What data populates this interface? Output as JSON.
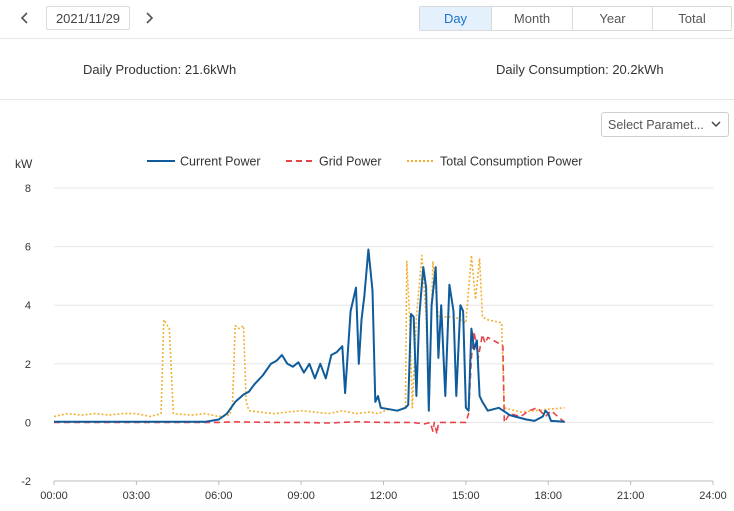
{
  "toolbar": {
    "prev_icon": "chevron-left-icon",
    "next_icon": "chevron-right-icon",
    "date": "2021/11/29",
    "tabs": [
      {
        "label": "Day",
        "active": true
      },
      {
        "label": "Month",
        "active": false
      },
      {
        "label": "Year",
        "active": false
      },
      {
        "label": "Total",
        "active": false
      }
    ]
  },
  "summary": {
    "production": "Daily Production: 21.6kWh",
    "consumption": "Daily Consumption: 20.2kWh"
  },
  "param_select": {
    "value": "Select Paramet...",
    "icon": "chevron-down-icon"
  },
  "colors": {
    "accent": "#1a73c8",
    "current_power": "#0f5c9c",
    "grid_power": "#e8454a",
    "consumption_power": "#f2b033"
  },
  "chart_data": {
    "type": "line",
    "ylabel": "kW",
    "ylim": [
      -2,
      8
    ],
    "yticks": [
      -2,
      0,
      2,
      4,
      6,
      8
    ],
    "xticks": [
      "00:00",
      "03:00",
      "06:00",
      "09:00",
      "12:00",
      "15:00",
      "18:00",
      "21:00",
      "24:00"
    ],
    "grid": "horizontal",
    "legend_position": "top-center",
    "series": [
      {
        "name": "Current Power",
        "style": "solid",
        "points": [
          [
            0.0,
            0.02
          ],
          [
            5.5,
            0.02
          ],
          [
            6.0,
            0.1
          ],
          [
            6.3,
            0.3
          ],
          [
            6.6,
            0.7
          ],
          [
            6.9,
            0.95
          ],
          [
            7.1,
            1.05
          ],
          [
            7.3,
            1.3
          ],
          [
            7.6,
            1.6
          ],
          [
            7.9,
            2.0
          ],
          [
            8.1,
            2.1
          ],
          [
            8.3,
            2.3
          ],
          [
            8.5,
            2.0
          ],
          [
            8.7,
            1.9
          ],
          [
            8.9,
            2.05
          ],
          [
            9.1,
            1.7
          ],
          [
            9.3,
            2.0
          ],
          [
            9.5,
            1.5
          ],
          [
            9.7,
            2.0
          ],
          [
            9.9,
            1.5
          ],
          [
            10.1,
            2.3
          ],
          [
            10.3,
            2.4
          ],
          [
            10.5,
            2.6
          ],
          [
            10.6,
            1.0
          ],
          [
            10.8,
            3.8
          ],
          [
            11.0,
            4.6
          ],
          [
            11.1,
            2.0
          ],
          [
            11.2,
            3.5
          ],
          [
            11.3,
            4.3
          ],
          [
            11.45,
            5.9
          ],
          [
            11.6,
            4.5
          ],
          [
            11.7,
            0.7
          ],
          [
            11.8,
            0.9
          ],
          [
            11.9,
            0.5
          ],
          [
            12.2,
            0.45
          ],
          [
            12.5,
            0.4
          ],
          [
            12.8,
            0.5
          ],
          [
            12.9,
            0.6
          ],
          [
            13.0,
            3.7
          ],
          [
            13.1,
            3.6
          ],
          [
            13.2,
            0.9
          ],
          [
            13.3,
            3.6
          ],
          [
            13.45,
            5.3
          ],
          [
            13.55,
            4.6
          ],
          [
            13.65,
            0.4
          ],
          [
            13.75,
            4.0
          ],
          [
            13.9,
            5.3
          ],
          [
            14.0,
            2.2
          ],
          [
            14.1,
            4.0
          ],
          [
            14.25,
            0.9
          ],
          [
            14.4,
            4.7
          ],
          [
            14.55,
            3.8
          ],
          [
            14.65,
            0.9
          ],
          [
            14.8,
            4.0
          ],
          [
            14.9,
            3.8
          ],
          [
            15.0,
            0.5
          ],
          [
            15.1,
            0.4
          ],
          [
            15.2,
            3.2
          ],
          [
            15.3,
            2.5
          ],
          [
            15.4,
            2.8
          ],
          [
            15.5,
            0.9
          ],
          [
            15.6,
            0.7
          ],
          [
            15.8,
            0.4
          ],
          [
            16.2,
            0.5
          ],
          [
            16.6,
            0.25
          ],
          [
            17.2,
            0.1
          ],
          [
            17.5,
            0.05
          ],
          [
            17.8,
            0.2
          ],
          [
            17.9,
            0.4
          ],
          [
            18.0,
            0.3
          ],
          [
            18.1,
            0.05
          ],
          [
            18.6,
            0.02
          ]
        ]
      },
      {
        "name": "Grid Power",
        "style": "dashed",
        "points": [
          [
            0.0,
            0.0
          ],
          [
            6.0,
            0.0
          ],
          [
            6.5,
            0.02
          ],
          [
            8.0,
            0.0
          ],
          [
            9.0,
            0.0
          ],
          [
            10.0,
            -0.02
          ],
          [
            11.0,
            0.02
          ],
          [
            12.0,
            0.0
          ],
          [
            13.0,
            0.0
          ],
          [
            13.5,
            -0.05
          ],
          [
            13.7,
            0.0
          ],
          [
            13.8,
            -0.3
          ],
          [
            13.85,
            0.0
          ],
          [
            13.95,
            -0.4
          ],
          [
            14.0,
            0.0
          ],
          [
            14.8,
            0.0
          ],
          [
            15.0,
            0.0
          ],
          [
            15.1,
            0.3
          ],
          [
            15.2,
            2.2
          ],
          [
            15.3,
            3.1
          ],
          [
            15.45,
            2.2
          ],
          [
            15.6,
            3.0
          ],
          [
            15.7,
            2.7
          ],
          [
            15.8,
            2.9
          ],
          [
            16.2,
            2.7
          ],
          [
            16.35,
            2.6
          ],
          [
            16.4,
            0.0
          ],
          [
            16.6,
            0.3
          ],
          [
            17.0,
            0.2
          ],
          [
            17.3,
            0.4
          ],
          [
            17.6,
            0.5
          ],
          [
            17.9,
            0.2
          ],
          [
            18.1,
            0.4
          ],
          [
            18.6,
            0.0
          ]
        ]
      },
      {
        "name": "Total Consumption Power",
        "style": "dotted",
        "points": [
          [
            0.0,
            0.2
          ],
          [
            0.5,
            0.3
          ],
          [
            1.0,
            0.25
          ],
          [
            1.5,
            0.3
          ],
          [
            2.0,
            0.25
          ],
          [
            2.5,
            0.3
          ],
          [
            3.0,
            0.3
          ],
          [
            3.5,
            0.2
          ],
          [
            3.9,
            0.3
          ],
          [
            4.0,
            3.5
          ],
          [
            4.2,
            3.2
          ],
          [
            4.35,
            0.3
          ],
          [
            5.0,
            0.25
          ],
          [
            5.5,
            0.3
          ],
          [
            6.0,
            0.2
          ],
          [
            6.4,
            0.25
          ],
          [
            6.5,
            0.6
          ],
          [
            6.6,
            3.3
          ],
          [
            6.75,
            3.2
          ],
          [
            6.9,
            3.3
          ],
          [
            7.0,
            0.7
          ],
          [
            7.1,
            0.4
          ],
          [
            7.5,
            0.35
          ],
          [
            8.0,
            0.3
          ],
          [
            8.5,
            0.35
          ],
          [
            9.0,
            0.4
          ],
          [
            9.5,
            0.35
          ],
          [
            10.0,
            0.3
          ],
          [
            10.5,
            0.4
          ],
          [
            11.0,
            0.3
          ],
          [
            11.5,
            0.35
          ],
          [
            11.8,
            0.3
          ],
          [
            12.2,
            0.45
          ],
          [
            12.5,
            0.4
          ],
          [
            12.8,
            0.5
          ],
          [
            12.85,
            5.5
          ],
          [
            12.95,
            3.6
          ],
          [
            13.05,
            0.5
          ],
          [
            13.2,
            3.6
          ],
          [
            13.4,
            5.7
          ],
          [
            13.55,
            3.6
          ],
          [
            13.65,
            0.4
          ],
          [
            13.8,
            5.5
          ],
          [
            14.0,
            3.6
          ],
          [
            14.2,
            3.6
          ],
          [
            14.6,
            3.6
          ],
          [
            15.0,
            3.4
          ],
          [
            15.2,
            5.7
          ],
          [
            15.35,
            4.2
          ],
          [
            15.5,
            5.6
          ],
          [
            15.6,
            3.6
          ],
          [
            15.8,
            3.5
          ],
          [
            16.3,
            3.4
          ],
          [
            16.4,
            0.5
          ],
          [
            17.0,
            0.35
          ],
          [
            17.5,
            0.4
          ],
          [
            18.0,
            0.45
          ],
          [
            18.6,
            0.5
          ]
        ]
      }
    ]
  }
}
